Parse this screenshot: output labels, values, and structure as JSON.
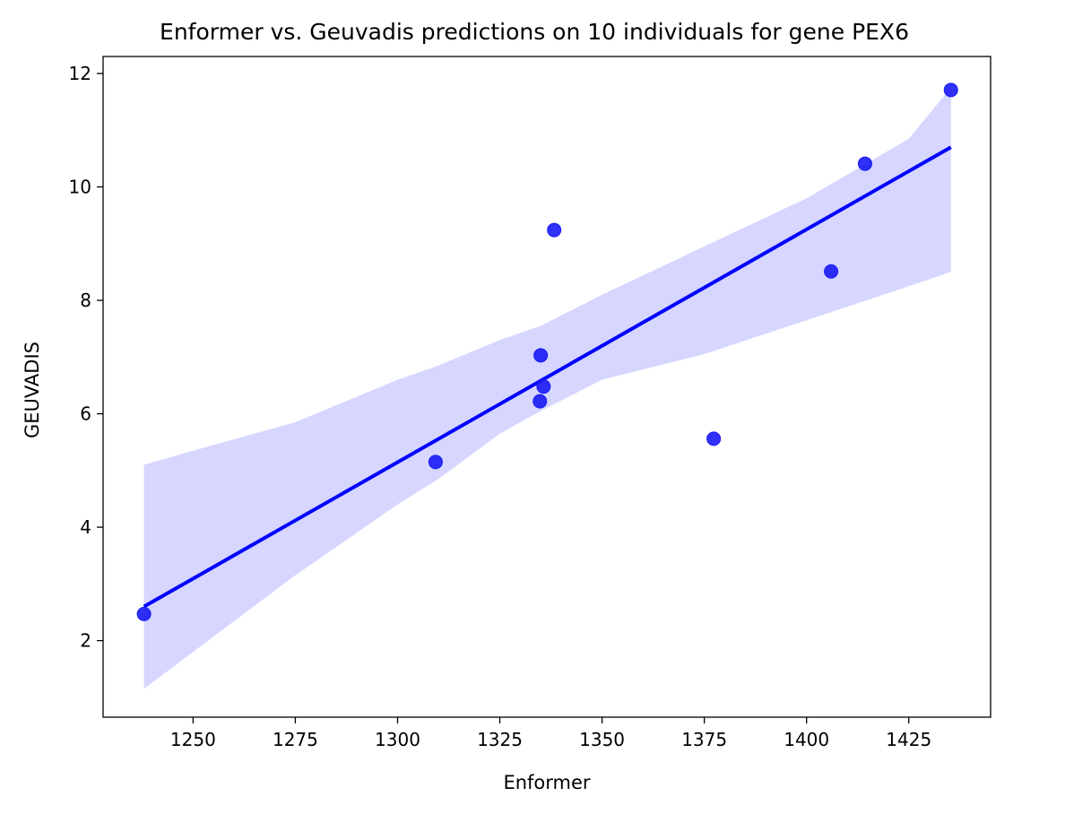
{
  "chart_data": {
    "type": "scatter",
    "title": "Enformer vs. Geuvadis predictions on 10 individuals for gene PEX6",
    "xlabel": "Enformer",
    "ylabel": "GEUVADIS",
    "xlim": [
      1228,
      1445
    ],
    "ylim": [
      0.65,
      12.3
    ],
    "xticks": [
      1250,
      1275,
      1300,
      1325,
      1350,
      1375,
      1400,
      1425
    ],
    "yticks": [
      2,
      4,
      6,
      8,
      10,
      12
    ],
    "grid": false,
    "points": [
      {
        "x": 1238.0,
        "y": 2.47
      },
      {
        "x": 1309.3,
        "y": 5.15
      },
      {
        "x": 1334.8,
        "y": 6.22
      },
      {
        "x": 1335.0,
        "y": 7.03
      },
      {
        "x": 1335.7,
        "y": 6.48
      },
      {
        "x": 1338.3,
        "y": 9.24
      },
      {
        "x": 1377.3,
        "y": 5.56
      },
      {
        "x": 1406.0,
        "y": 8.51
      },
      {
        "x": 1414.3,
        "y": 10.41
      },
      {
        "x": 1435.3,
        "y": 11.71
      }
    ],
    "regression_line": {
      "x": [
        1238.0,
        1435.3
      ],
      "y": [
        2.6,
        10.7
      ]
    },
    "confidence_band": {
      "x": [
        1238,
        1250,
        1275,
        1300,
        1310,
        1325,
        1335,
        1350,
        1375,
        1400,
        1425,
        1435.3
      ],
      "upper": [
        5.1,
        5.35,
        5.85,
        6.6,
        6.85,
        7.3,
        7.55,
        8.1,
        8.95,
        9.8,
        10.85,
        11.75
      ],
      "lower": [
        1.15,
        1.8,
        3.15,
        4.4,
        4.85,
        5.65,
        6.05,
        6.6,
        7.05,
        7.65,
        8.25,
        8.5
      ]
    },
    "colors": {
      "points": "#1a1af5",
      "line": "#0000ff",
      "band": "#d6d6ff"
    }
  }
}
